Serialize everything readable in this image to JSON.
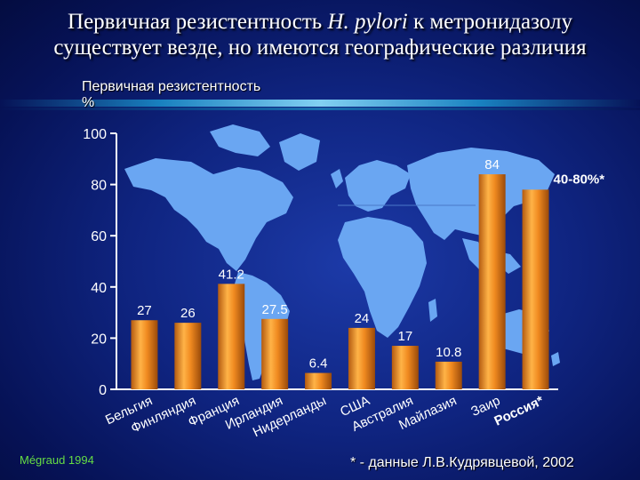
{
  "title_line1_pre": "Первичная резистентность ",
  "title_line1_italic": "H. pylori",
  "title_line1_post": " к метронидазолу",
  "title_line2": "существует везде, но имеются географические различия",
  "source": "Mégraud 1994",
  "footnote": "* - данные Л.В.Кудрявцевой, 2002",
  "colors": {
    "bar": "#f08a20",
    "highlight": "#ffee44",
    "map": "#6aa6f2",
    "source_text": "#66dd44"
  },
  "chart_data": {
    "type": "bar",
    "ylabel": "Первичная резистентность\n%",
    "ylim": [
      0,
      100
    ],
    "yticks": [
      0,
      20,
      40,
      60,
      80,
      100
    ],
    "categories": [
      "Бельгия",
      "Финляндия",
      "Франция",
      "Ирландия",
      "Нидерланды",
      "США",
      "Австралия",
      "Майлазия",
      "Заир",
      "Россия*"
    ],
    "values": [
      27,
      26,
      41.2,
      27.5,
      6.4,
      24,
      17,
      10.8,
      84,
      78
    ],
    "data_labels": [
      "27",
      "26",
      "41.2",
      "27.5",
      "6.4",
      "24",
      "17",
      "10.8",
      "84",
      "40-80%*"
    ],
    "highlight_category": "Россия*",
    "grid": false
  }
}
